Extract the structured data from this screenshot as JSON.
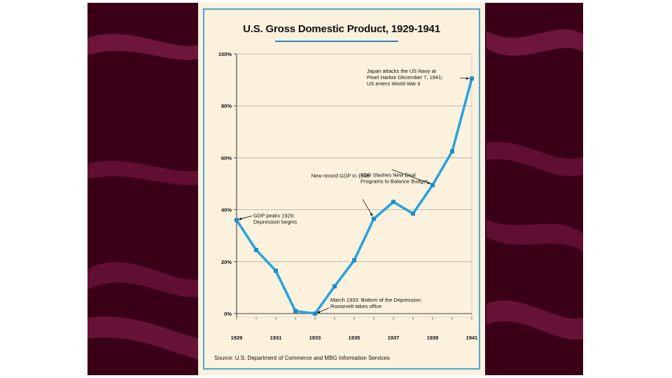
{
  "chart_data": {
    "type": "line",
    "title": "U.S. Gross Domestic Product, 1929-1941",
    "xlabel": "",
    "ylabel": "",
    "x": [
      1929,
      1930,
      1931,
      1932,
      1933,
      1934,
      1935,
      1936,
      1937,
      1938,
      1939,
      1940,
      1941
    ],
    "values": [
      36,
      24.5,
      16.5,
      1,
      0,
      10.5,
      20.5,
      36.5,
      43,
      38.5,
      49.5,
      62.5,
      90.5
    ],
    "xlim": [
      1929,
      1941
    ],
    "ylim": [
      0,
      100
    ],
    "x_ticks": [
      "1929",
      "1931",
      "1933",
      "1935",
      "1937",
      "1939",
      "1941"
    ],
    "y_ticks": [
      "0%",
      "20%",
      "40%",
      "60%",
      "80%",
      "100%"
    ],
    "grid": true,
    "line_color": "#29a3e0",
    "annotations": [
      {
        "lines": [
          "GDP peaks 1929:",
          "Depression begins"
        ],
        "x": 1929,
        "y": 36
      },
      {
        "lines": [
          "New record GDP in 1936"
        ],
        "x": 1936,
        "y": 36.5
      },
      {
        "lines": [
          "FDR Slashes New Deal",
          "Programs to Balance Budget"
        ],
        "x": 1939,
        "y": 49.5
      },
      {
        "lines": [
          "March 1933: Bottom of the Depression;",
          "Roosevelt takes office"
        ],
        "x": 1933,
        "y": 0
      },
      {
        "lines": [
          "Japan attacks the US Navy at",
          "Pearl Harbor December 7, 1941;",
          "US enters World War II"
        ],
        "x": 1941,
        "y": 90.5
      }
    ],
    "source": "Source: U.S. Department of Commerce and MBG Information Services"
  }
}
